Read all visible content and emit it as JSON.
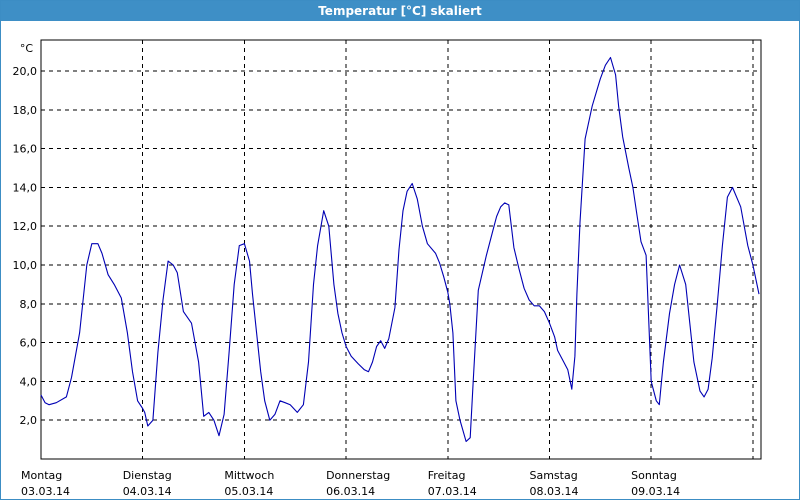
{
  "window": {
    "title": "Temperatur [°C] skaliert"
  },
  "chart_data": {
    "type": "line",
    "title": "Temperatur [°C] skaliert",
    "ylabel": "°C",
    "xlabel": "",
    "ylim": [
      0,
      21.6
    ],
    "xlim": [
      0,
      7.08
    ],
    "grid": true,
    "y_ticks": [
      "2,0",
      "4,0",
      "6,0",
      "8,0",
      "10,0",
      "12,0",
      "14,0",
      "16,0",
      "18,0",
      "20,0"
    ],
    "x_ticks": [
      {
        "day": "Montag",
        "date": "03.03.14"
      },
      {
        "day": "Dienstag",
        "date": "04.03.14"
      },
      {
        "day": "Mittwoch",
        "date": "05.03.14"
      },
      {
        "day": "Donnerstag",
        "date": "06.03.14"
      },
      {
        "day": "Freitag",
        "date": "07.03.14"
      },
      {
        "day": "Samstag",
        "date": "08.03.14"
      },
      {
        "day": "Sonntag",
        "date": "09.03.14"
      }
    ],
    "colors": {
      "line": "#0000b4",
      "grid": "#000000",
      "titlebar": "#3e8fc6"
    },
    "series": [
      {
        "x": [
          0,
          0.04,
          0.08,
          0.15,
          0.25,
          0.3,
          0.38,
          0.45,
          0.5,
          0.56,
          0.6,
          0.66,
          0.72,
          0.79,
          0.85,
          0.9,
          0.95,
          1.0,
          1.02,
          1.05,
          1.1,
          1.15,
          1.2,
          1.25,
          1.3,
          1.34,
          1.4,
          1.48,
          1.55,
          1.6,
          1.65,
          1.7,
          1.75,
          1.8,
          1.85,
          1.9,
          1.95,
          2.0,
          2.05,
          2.08,
          2.12,
          2.16,
          2.2,
          2.25,
          2.3,
          2.35,
          2.4,
          2.45,
          2.52,
          2.58,
          2.63,
          2.68,
          2.72,
          2.78,
          2.83,
          2.88,
          2.92,
          2.96,
          3.0,
          3.05,
          3.12,
          3.18,
          3.22,
          3.26,
          3.3,
          3.34,
          3.38,
          3.42,
          3.48,
          3.52,
          3.56,
          3.6,
          3.65,
          3.7,
          3.75,
          3.8,
          3.88,
          3.92,
          3.96,
          4.0,
          4.02,
          4.05,
          4.08,
          4.12,
          4.18,
          4.22,
          4.25,
          4.3,
          4.38,
          4.45,
          4.48,
          4.52,
          4.56,
          4.6,
          4.65,
          4.7,
          4.75,
          4.8,
          4.85,
          4.9,
          4.95,
          5.0,
          5.05,
          5.08,
          5.12,
          5.18,
          5.22,
          5.25,
          5.27,
          5.3,
          5.35,
          5.42,
          5.5,
          5.55,
          5.6,
          5.65,
          5.68,
          5.72,
          5.78,
          5.82,
          5.86,
          5.9,
          5.95,
          6.0,
          6.05,
          6.08,
          6.1,
          6.12,
          6.18,
          6.23,
          6.28,
          6.34,
          6.38,
          6.42,
          6.48,
          6.52,
          6.56,
          6.6,
          6.65,
          6.7,
          6.75,
          6.8,
          6.88,
          6.95,
          7.0,
          7.06
        ],
        "y": [
          3.3,
          2.9,
          2.8,
          2.9,
          3.2,
          4.2,
          6.5,
          10.0,
          11.1,
          11.1,
          10.6,
          9.5,
          9.0,
          8.3,
          6.5,
          4.5,
          3.0,
          2.6,
          2.4,
          1.7,
          2.0,
          5.5,
          8.2,
          10.2,
          10.0,
          9.6,
          7.6,
          7.0,
          5.0,
          2.2,
          2.4,
          2.0,
          1.2,
          2.3,
          5.5,
          9.0,
          11.0,
          11.1,
          10.2,
          8.5,
          6.5,
          4.5,
          3.0,
          2.0,
          2.3,
          3.0,
          2.9,
          2.8,
          2.4,
          2.8,
          5.0,
          9.0,
          11.0,
          12.8,
          12.0,
          9.0,
          7.5,
          6.5,
          5.8,
          5.3,
          4.9,
          4.6,
          4.5,
          5.0,
          5.8,
          6.1,
          5.7,
          6.2,
          7.8,
          10.8,
          12.8,
          13.8,
          14.2,
          13.4,
          12.0,
          11.1,
          10.6,
          10.1,
          9.4,
          8.6,
          8.0,
          6.5,
          3.0,
          2.0,
          0.9,
          1.1,
          4.0,
          8.7,
          10.5,
          11.9,
          12.5,
          13.0,
          13.2,
          13.1,
          10.9,
          9.8,
          8.8,
          8.2,
          7.9,
          7.9,
          7.6,
          7.0,
          6.3,
          5.6,
          5.2,
          4.6,
          3.6,
          5.3,
          8.5,
          12.2,
          16.5,
          18.2,
          19.6,
          20.3,
          20.7,
          19.8,
          18.2,
          16.6,
          15.0,
          14.0,
          12.6,
          11.2,
          10.5,
          4.0,
          3.0,
          2.8,
          3.9,
          5.0,
          7.5,
          9.0,
          10.0,
          9.0,
          7.0,
          5.0,
          3.5,
          3.2,
          3.6,
          5.2,
          8.0,
          11.0,
          13.5,
          14.0,
          13.0,
          11.0,
          10.0,
          8.5
        ]
      }
    ]
  }
}
